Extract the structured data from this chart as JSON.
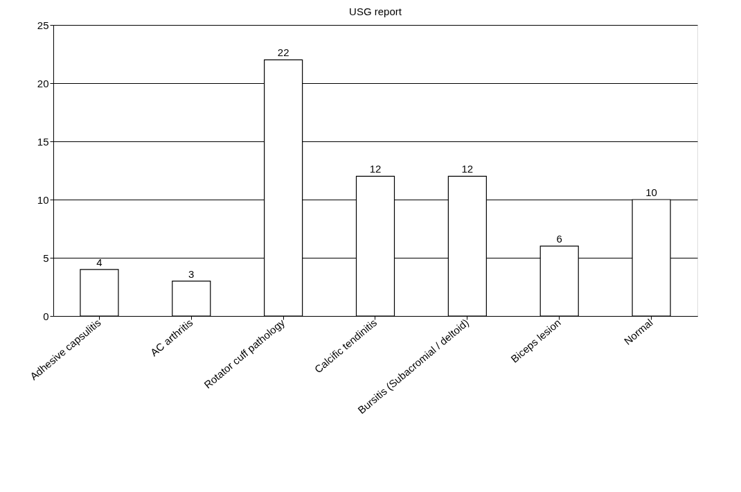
{
  "chart_data": {
    "type": "bar",
    "title": "USG report",
    "categories": [
      "Adhesive capsulitis",
      "AC arthritis",
      "Rotator cuff pathology",
      "Calcific tendinitis",
      "Bursitis (Subacromial / deltoid)",
      "Biceps lesion",
      "Normal"
    ],
    "values": [
      4,
      3,
      22,
      12,
      12,
      6,
      10
    ],
    "color": "#ffffff",
    "ylim": [
      0,
      25
    ],
    "yticks": [
      0,
      5,
      10,
      15,
      20,
      25
    ],
    "grid": "y",
    "data_labels": true
  }
}
